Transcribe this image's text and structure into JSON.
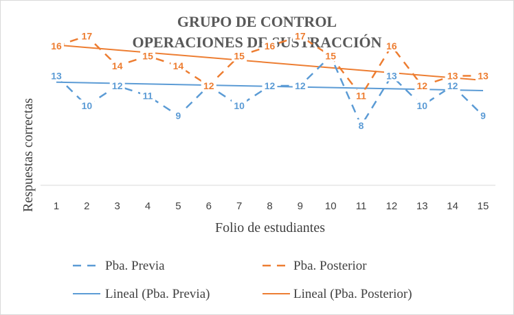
{
  "chart_data": {
    "type": "line",
    "title_lines": [
      "GRUPO DE CONTROL",
      "OPERACIONES DE SUSTRACCIÓN"
    ],
    "xlabel": "Folio de estudiantes",
    "ylabel": "Respuestas correctas",
    "categories": [
      "1",
      "2",
      "3",
      "4",
      "5",
      "6",
      "7",
      "8",
      "9",
      "10",
      "11",
      "12",
      "13",
      "14",
      "15"
    ],
    "ylim": [
      2,
      20
    ],
    "grid": false,
    "legend_position": "bottom",
    "series": [
      {
        "name": "Pba. Previa",
        "color": "#5b9bd5",
        "style": "dashed",
        "values": [
          13,
          10,
          12,
          11,
          9,
          12,
          10,
          12,
          12,
          15,
          8,
          13,
          10,
          12,
          9
        ],
        "labels": [
          "13",
          "10",
          "12",
          "11",
          "9",
          "12",
          "10",
          "12",
          "12",
          "15",
          "8",
          "13",
          "10",
          "12",
          "9"
        ],
        "show_label": [
          true,
          true,
          true,
          true,
          true,
          true,
          true,
          true,
          true,
          false,
          true,
          true,
          true,
          true,
          true
        ]
      },
      {
        "name": "Pba. Posterior",
        "color": "#ed7d31",
        "style": "dashed",
        "values": [
          16,
          17,
          14,
          15,
          14,
          12,
          15,
          16,
          17,
          15,
          11,
          16,
          12,
          13,
          13
        ],
        "labels": [
          "16",
          "17",
          "14",
          "15",
          "14",
          "12",
          "15",
          "16",
          "17",
          "15",
          "11",
          "16",
          "12",
          "13",
          "13"
        ],
        "show_label": [
          true,
          true,
          true,
          true,
          true,
          true,
          true,
          true,
          true,
          true,
          true,
          true,
          true,
          true,
          true
        ]
      }
    ],
    "trendlines": [
      {
        "name": "Lineal (Pba. Previa)",
        "color": "#5b9bd5",
        "from": 12.36,
        "to": 11.52
      },
      {
        "name": "Lineal (Pba. Posterior)",
        "color": "#ed7d31",
        "from": 16.1,
        "to": 12.55
      }
    ]
  }
}
